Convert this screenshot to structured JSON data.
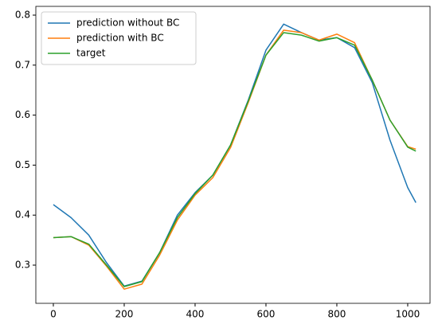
{
  "chart_data": {
    "type": "line",
    "x": [
      0,
      50,
      100,
      150,
      200,
      250,
      300,
      350,
      400,
      450,
      500,
      550,
      600,
      650,
      700,
      750,
      800,
      850,
      900,
      950,
      1000,
      1023
    ],
    "series": [
      {
        "name": "prediction without BC",
        "color": "#1f77b4",
        "values": [
          0.421,
          0.395,
          0.36,
          0.305,
          0.258,
          0.268,
          0.325,
          0.4,
          0.445,
          0.48,
          0.54,
          0.63,
          0.73,
          0.782,
          0.765,
          0.75,
          0.755,
          0.735,
          0.665,
          0.55,
          0.455,
          0.425
        ]
      },
      {
        "name": "prediction with BC",
        "color": "#ff7f0e",
        "values": [
          0.355,
          0.357,
          0.34,
          0.298,
          0.252,
          0.262,
          0.32,
          0.39,
          0.44,
          0.475,
          0.535,
          0.625,
          0.72,
          0.77,
          0.765,
          0.75,
          0.762,
          0.745,
          0.67,
          0.59,
          0.537,
          0.532
        ]
      },
      {
        "name": "target",
        "color": "#2ca02c",
        "values": [
          0.355,
          0.357,
          0.342,
          0.3,
          0.257,
          0.267,
          0.325,
          0.395,
          0.443,
          0.48,
          0.54,
          0.628,
          0.72,
          0.765,
          0.76,
          0.748,
          0.755,
          0.74,
          0.67,
          0.59,
          0.536,
          0.528
        ]
      }
    ],
    "xlim": [
      -49.4,
      1063
    ],
    "ylim": [
      0.2236,
      0.8175
    ],
    "xticks": [
      0,
      200,
      400,
      600,
      800,
      1000
    ],
    "yticks": [
      0.3,
      0.4,
      0.5,
      0.6,
      0.7,
      0.8
    ],
    "legend": "upper left"
  }
}
